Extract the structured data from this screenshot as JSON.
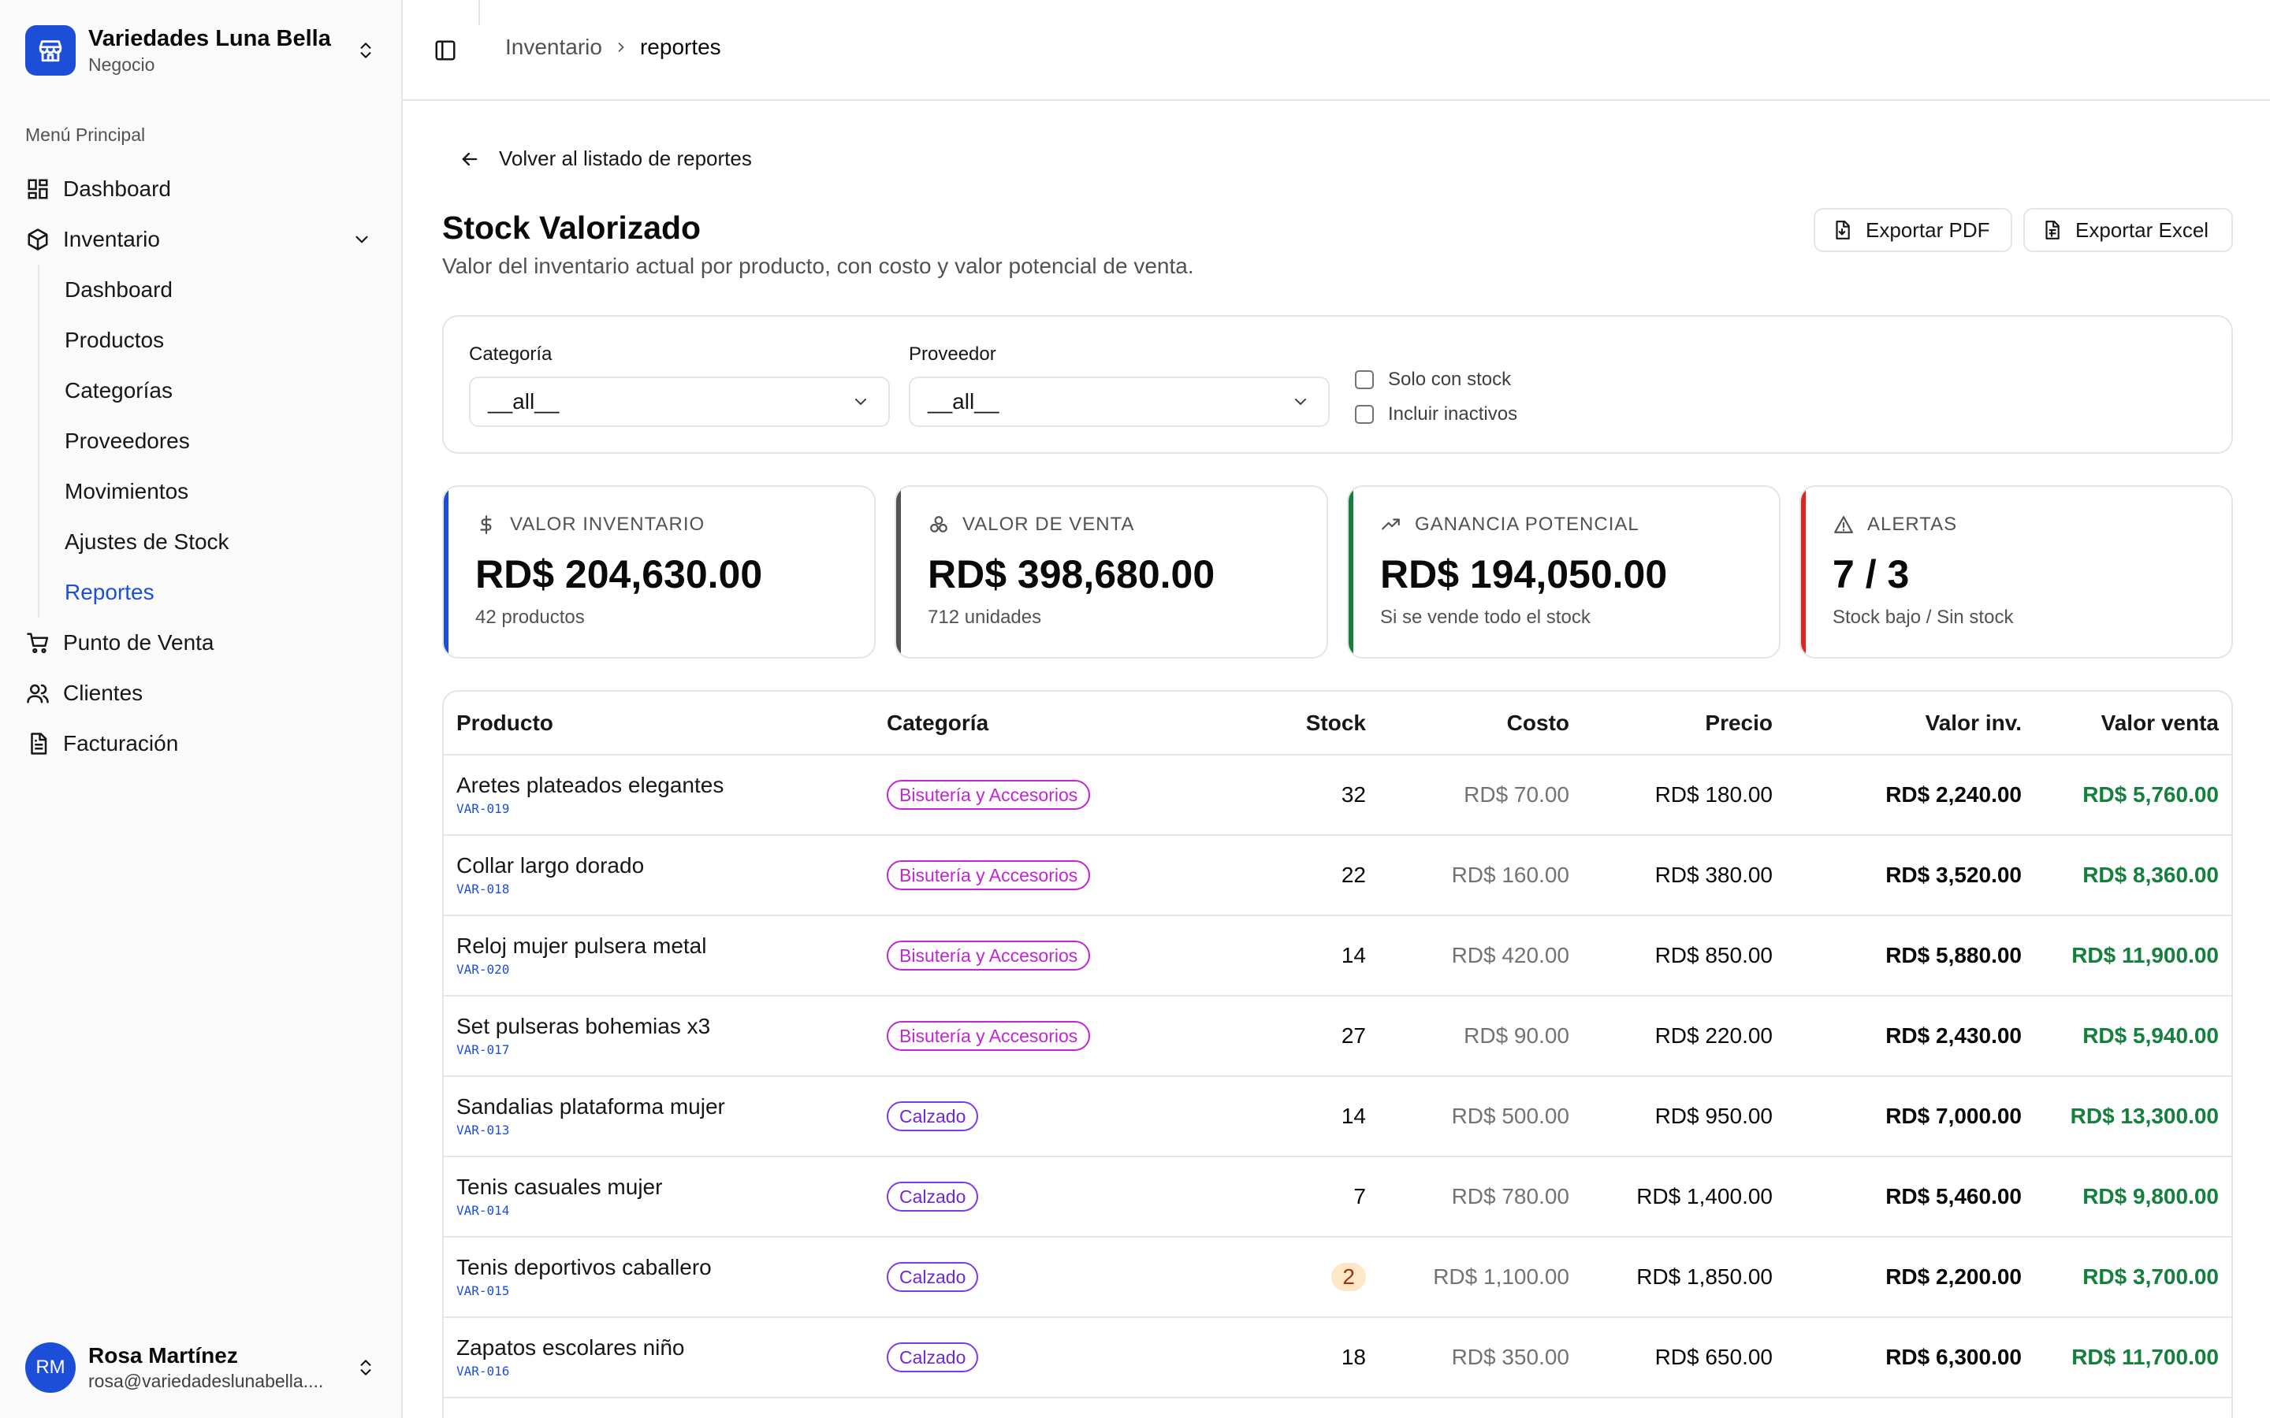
{
  "sidebar": {
    "business_name": "Variedades Luna Bella",
    "business_sub": "Negocio",
    "menu_label": "Menú Principal",
    "items": [
      {
        "label": "Dashboard"
      },
      {
        "label": "Inventario"
      }
    ],
    "inventory_sub": [
      {
        "label": "Dashboard"
      },
      {
        "label": "Productos"
      },
      {
        "label": "Categorías"
      },
      {
        "label": "Proveedores"
      },
      {
        "label": "Movimientos"
      },
      {
        "label": "Ajustes de Stock"
      },
      {
        "label": "Reportes"
      }
    ],
    "bottom_items": [
      {
        "label": "Punto de Venta"
      },
      {
        "label": "Clientes"
      },
      {
        "label": "Facturación"
      }
    ],
    "user": {
      "initials": "RM",
      "name": "Rosa Martínez",
      "email": "rosa@variedadeslunabella...."
    }
  },
  "header": {
    "breadcrumb_parent": "Inventario",
    "breadcrumb_current": "reportes"
  },
  "page": {
    "back_label": "Volver al listado de reportes",
    "title": "Stock Valorizado",
    "subtitle": "Valor del inventario actual por producto, con costo y valor potencial de venta.",
    "export_pdf": "Exportar PDF",
    "export_excel": "Exportar Excel"
  },
  "filters": {
    "category_label": "Categoría",
    "category_value": "__all__",
    "supplier_label": "Proveedor",
    "supplier_value": "__all__",
    "only_stock_label": "Solo con stock",
    "include_inactive_label": "Incluir inactivos"
  },
  "cards": [
    {
      "title": "VALOR INVENTARIO",
      "value": "RD$ 204,630.00",
      "foot": "42 productos",
      "accent": "#1d4ed8",
      "icon": "dollar-icon"
    },
    {
      "title": "VALOR DE VENTA",
      "value": "RD$ 398,680.00",
      "foot": "712 unidades",
      "accent": "#525252",
      "icon": "coins-icon"
    },
    {
      "title": "GANANCIA POTENCIAL",
      "value": "RD$ 194,050.00",
      "foot": "Si se vende todo el stock",
      "accent": "#15803d",
      "icon": "trend-up-icon"
    },
    {
      "title": "ALERTAS",
      "value": "7 / 3",
      "foot": "Stock bajo / Sin stock",
      "accent": "#dc2626",
      "icon": "alert-icon"
    }
  ],
  "table": {
    "columns": [
      "Producto",
      "Categoría",
      "Stock",
      "Costo",
      "Precio",
      "Valor inv.",
      "Valor venta"
    ],
    "rows": [
      {
        "name": "Aretes plateados elegantes",
        "sku": "VAR-019",
        "category": "Bisutería y Accesorios",
        "stock": "32",
        "cost": "RD$ 70.00",
        "price": "RD$ 180.00",
        "inv": "RD$ 2,240.00",
        "sale": "RD$ 5,760.00"
      },
      {
        "name": "Collar largo dorado",
        "sku": "VAR-018",
        "category": "Bisutería y Accesorios",
        "stock": "22",
        "cost": "RD$ 160.00",
        "price": "RD$ 380.00",
        "inv": "RD$ 3,520.00",
        "sale": "RD$ 8,360.00"
      },
      {
        "name": "Reloj mujer pulsera metal",
        "sku": "VAR-020",
        "category": "Bisutería y Accesorios",
        "stock": "14",
        "cost": "RD$ 420.00",
        "price": "RD$ 850.00",
        "inv": "RD$ 5,880.00",
        "sale": "RD$ 11,900.00"
      },
      {
        "name": "Set pulseras bohemias x3",
        "sku": "VAR-017",
        "category": "Bisutería y Accesorios",
        "stock": "27",
        "cost": "RD$ 90.00",
        "price": "RD$ 220.00",
        "inv": "RD$ 2,430.00",
        "sale": "RD$ 5,940.00"
      },
      {
        "name": "Sandalias plataforma mujer",
        "sku": "VAR-013",
        "category": "Calzado",
        "stock": "14",
        "cost": "RD$ 500.00",
        "price": "RD$ 950.00",
        "inv": "RD$ 7,000.00",
        "sale": "RD$ 13,300.00"
      },
      {
        "name": "Tenis casuales mujer",
        "sku": "VAR-014",
        "category": "Calzado",
        "stock": "7",
        "cost": "RD$ 780.00",
        "price": "RD$ 1,400.00",
        "inv": "RD$ 5,460.00",
        "sale": "RD$ 9,800.00"
      },
      {
        "name": "Tenis deportivos caballero",
        "sku": "VAR-015",
        "category": "Calzado",
        "stock": "2",
        "cost": "RD$ 1,100.00",
        "price": "RD$ 1,850.00",
        "inv": "RD$ 2,200.00",
        "sale": "RD$ 3,700.00"
      },
      {
        "name": "Zapatos escolares niño",
        "sku": "VAR-016",
        "category": "Calzado",
        "stock": "18",
        "cost": "RD$ 350.00",
        "price": "RD$ 650.00",
        "inv": "RD$ 6,300.00",
        "sale": "RD$ 11,700.00"
      }
    ]
  }
}
